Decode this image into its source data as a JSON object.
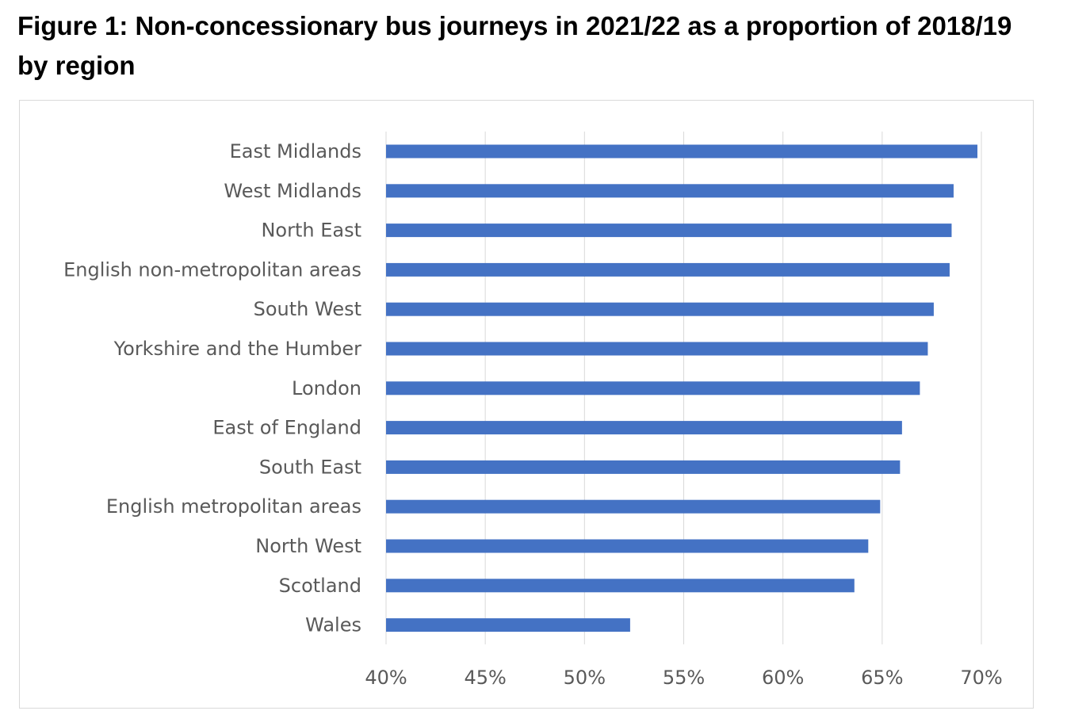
{
  "title": "Figure 1: Non-concessionary bus journeys in 2021/22 as a proportion of 2018/19 by region",
  "chart_data": {
    "type": "bar",
    "orientation": "horizontal",
    "title": "Figure 1: Non-concessionary bus journeys in 2021/22 as a proportion of 2018/19 by region",
    "xlabel": "",
    "ylabel": "",
    "xlim": [
      40,
      70
    ],
    "x_ticks": [
      "40%",
      "45%",
      "50%",
      "55%",
      "60%",
      "65%",
      "70%"
    ],
    "grid": true,
    "bar_color": "#4472C4",
    "categories": [
      "East Midlands",
      "West Midlands",
      "North East",
      "English non-metropolitan areas",
      "South West",
      "Yorkshire and the Humber",
      "London",
      "East of England",
      "South East",
      "English metropolitan areas",
      "North West",
      "Scotland",
      "Wales"
    ],
    "values": [
      69.8,
      68.6,
      68.5,
      68.4,
      67.6,
      67.3,
      66.9,
      66.0,
      65.9,
      64.9,
      64.3,
      63.6,
      52.3
    ]
  }
}
